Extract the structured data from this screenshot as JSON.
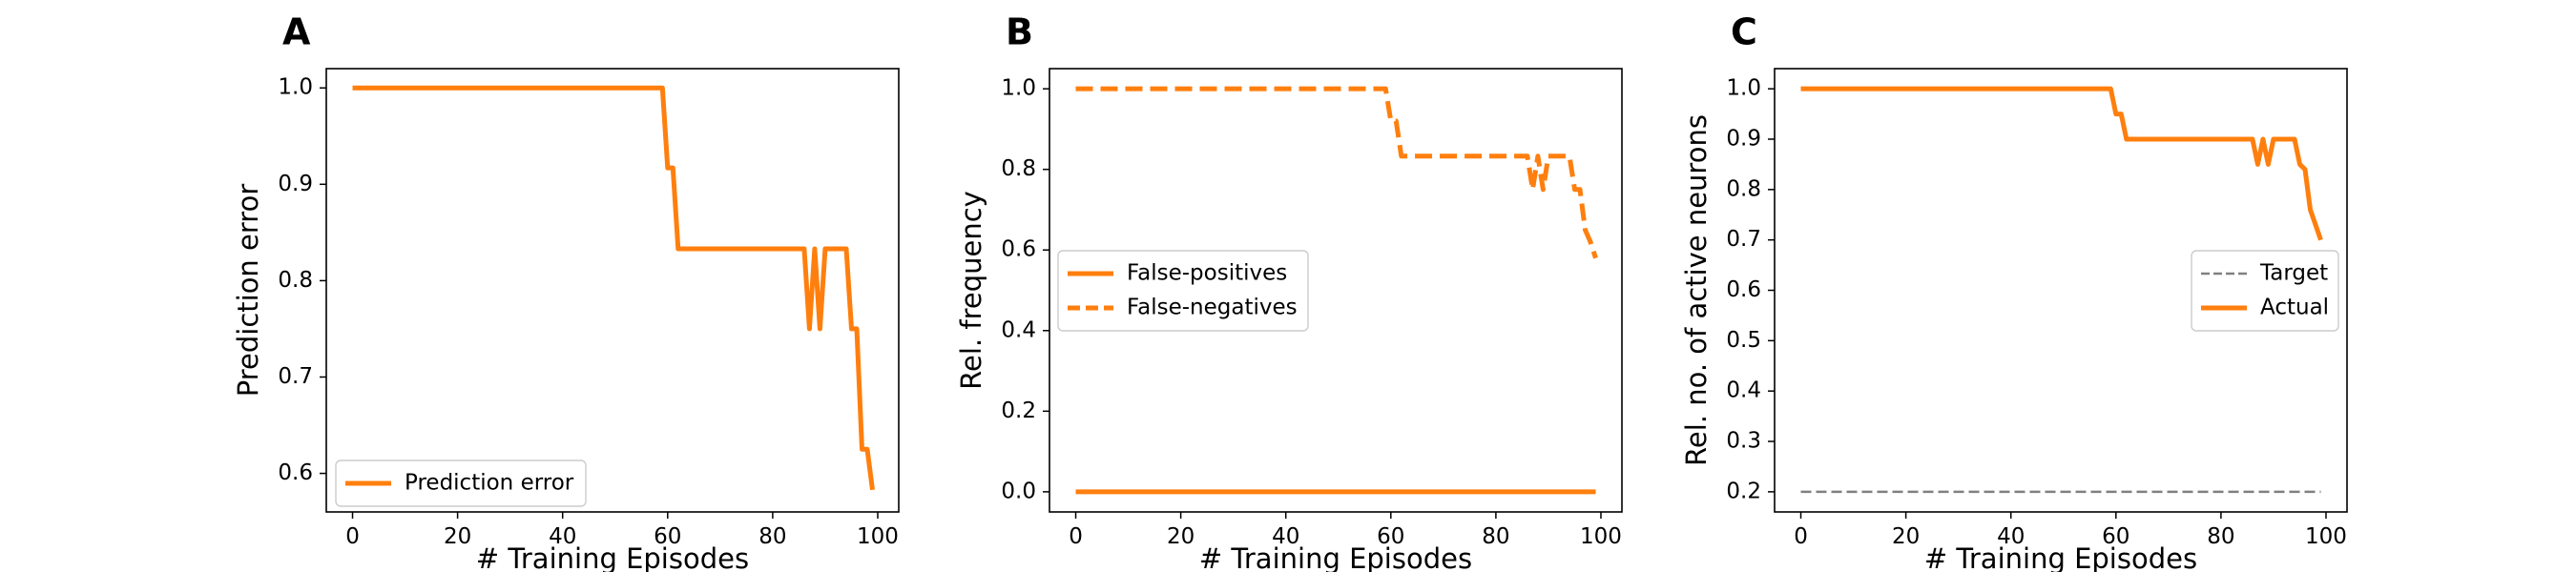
{
  "colors": {
    "orange": "#ff7f0e",
    "gray": "#808080",
    "frame": "#000000",
    "legend_border": "#cccccc"
  },
  "chart_data": [
    {
      "type": "line",
      "panel_label": "A",
      "xlabel": "# Training Episodes",
      "ylabel": "Prediction error",
      "xlim": [
        -5,
        104
      ],
      "ylim": [
        0.56,
        1.02
      ],
      "xticks": [
        0,
        20,
        40,
        60,
        80,
        100
      ],
      "yticks": [
        0.6,
        0.7,
        0.8,
        0.9,
        1.0
      ],
      "ytick_labels": [
        "0.6",
        "0.7",
        "0.8",
        "0.9",
        "1.0"
      ],
      "grid": false,
      "legend": "lower-left",
      "series": [
        {
          "name": "Prediction error",
          "color": "#ff7f0e",
          "style": "solid",
          "x": [
            0,
            59,
            60,
            61,
            62,
            86,
            87,
            88,
            89,
            90,
            94,
            95,
            96,
            97,
            98,
            99
          ],
          "y": [
            1.0,
            1.0,
            0.917,
            0.917,
            0.833,
            0.833,
            0.75,
            0.833,
            0.75,
            0.833,
            0.833,
            0.75,
            0.75,
            0.625,
            0.625,
            0.583
          ]
        }
      ]
    },
    {
      "type": "line",
      "panel_label": "B",
      "xlabel": "# Training Episodes",
      "ylabel": "Rel. frequency",
      "xlim": [
        -5,
        104
      ],
      "ylim": [
        -0.05,
        1.05
      ],
      "xticks": [
        0,
        20,
        40,
        60,
        80,
        100
      ],
      "yticks": [
        0.0,
        0.2,
        0.4,
        0.6,
        0.8,
        1.0
      ],
      "ytick_labels": [
        "0.0",
        "0.2",
        "0.4",
        "0.6",
        "0.8",
        "1.0"
      ],
      "grid": false,
      "legend": "center-left",
      "series": [
        {
          "name": "False-positives",
          "color": "#ff7f0e",
          "style": "solid",
          "x": [
            0,
            99
          ],
          "y": [
            0.0,
            0.0
          ]
        },
        {
          "name": "False-negatives",
          "color": "#ff7f0e",
          "style": "dashed",
          "x": [
            0,
            59,
            60,
            61,
            62,
            86,
            87,
            88,
            89,
            90,
            94,
            95,
            96,
            97,
            98,
            99
          ],
          "y": [
            1.0,
            1.0,
            0.92,
            0.92,
            0.833,
            0.833,
            0.75,
            0.833,
            0.75,
            0.833,
            0.833,
            0.75,
            0.75,
            0.65,
            0.62,
            0.58
          ]
        }
      ]
    },
    {
      "type": "line",
      "panel_label": "C",
      "xlabel": "# Training Episodes",
      "ylabel": "Rel. no. of active neurons",
      "xlim": [
        -5,
        104
      ],
      "ylim": [
        0.16,
        1.04
      ],
      "xticks": [
        0,
        20,
        40,
        60,
        80,
        100
      ],
      "yticks": [
        0.2,
        0.3,
        0.4,
        0.5,
        0.6,
        0.7,
        0.8,
        0.9,
        1.0
      ],
      "ytick_labels": [
        "0.2",
        "0.3",
        "0.4",
        "0.5",
        "0.6",
        "0.7",
        "0.8",
        "0.9",
        "1.0"
      ],
      "grid": false,
      "legend": "center-right",
      "series": [
        {
          "name": "Target",
          "color": "#808080",
          "style": "dashed-thin",
          "x": [
            0,
            99
          ],
          "y": [
            0.2,
            0.2
          ]
        },
        {
          "name": "Actual",
          "color": "#ff7f0e",
          "style": "solid",
          "x": [
            0,
            59,
            60,
            61,
            62,
            86,
            87,
            88,
            89,
            90,
            94,
            95,
            96,
            97,
            98,
            99
          ],
          "y": [
            1.0,
            1.0,
            0.95,
            0.95,
            0.9,
            0.9,
            0.85,
            0.9,
            0.85,
            0.9,
            0.9,
            0.85,
            0.84,
            0.76,
            0.73,
            0.7
          ]
        }
      ]
    }
  ]
}
